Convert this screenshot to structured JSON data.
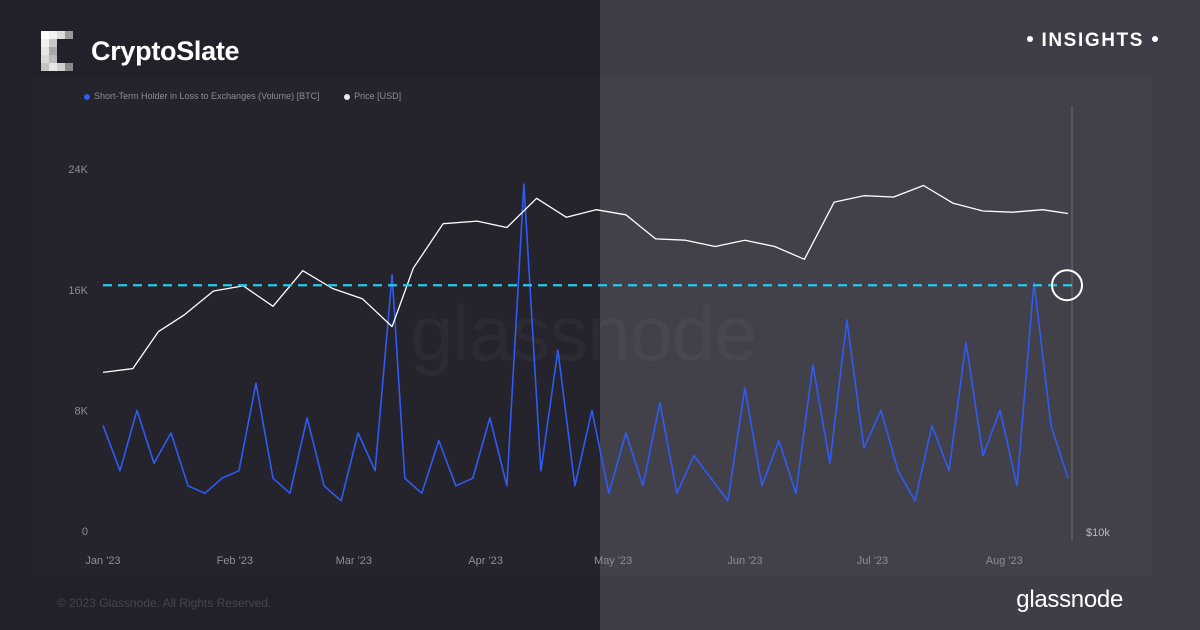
{
  "header": {
    "brand": "CryptoSlate",
    "insights_label": "INSIGHTS"
  },
  "legend": {
    "series_a": "Short-Term Holder in Loss to Exchanges (Volume) [BTC]",
    "series_b": "Price [USD]"
  },
  "watermark": "glassnode",
  "footer": {
    "copyright": "© 2023 Glassnode. All Rights Reserved.",
    "brand": "glassnode"
  },
  "colors": {
    "volume": "#2f5bf5",
    "price": "#ffffff",
    "reference_line": "#29c8e8",
    "highlight_circle": "#ffffff"
  },
  "chart_data": {
    "type": "line",
    "x_ticks": [
      "Jan '23",
      "Feb '23",
      "Mar '23",
      "Apr '23",
      "May '23",
      "Jun '23",
      "Jul '23",
      "Aug '23"
    ],
    "y_left_ticks": [
      "0",
      "8K",
      "16K",
      "24K"
    ],
    "y_left_range": [
      0,
      26000
    ],
    "y_right_tick": "$10k",
    "reference_line_value": 16300,
    "grid": false,
    "legend_position": "top-left",
    "series": [
      {
        "name": "Short-Term Holder in Loss to Exchanges (Volume) [BTC]",
        "axis": "left",
        "x": [
          "2023-01-01",
          "2023-01-05",
          "2023-01-09",
          "2023-01-13",
          "2023-01-17",
          "2023-01-21",
          "2023-01-25",
          "2023-01-29",
          "2023-02-02",
          "2023-02-06",
          "2023-02-10",
          "2023-02-14",
          "2023-02-18",
          "2023-02-22",
          "2023-02-26",
          "2023-03-02",
          "2023-03-06",
          "2023-03-10",
          "2023-03-13",
          "2023-03-17",
          "2023-03-21",
          "2023-03-25",
          "2023-03-29",
          "2023-04-02",
          "2023-04-06",
          "2023-04-10",
          "2023-04-14",
          "2023-04-18",
          "2023-04-22",
          "2023-04-26",
          "2023-04-30",
          "2023-05-04",
          "2023-05-08",
          "2023-05-12",
          "2023-05-16",
          "2023-05-20",
          "2023-05-24",
          "2023-05-28",
          "2023-06-01",
          "2023-06-05",
          "2023-06-09",
          "2023-06-13",
          "2023-06-17",
          "2023-06-21",
          "2023-06-25",
          "2023-06-29",
          "2023-07-03",
          "2023-07-07",
          "2023-07-11",
          "2023-07-15",
          "2023-07-19",
          "2023-07-23",
          "2023-07-27",
          "2023-07-31",
          "2023-08-04",
          "2023-08-08",
          "2023-08-12",
          "2023-08-16"
        ],
        "values": [
          7000,
          4000,
          8000,
          4500,
          6500,
          3000,
          2500,
          3500,
          4000,
          9800,
          3500,
          2500,
          7500,
          3000,
          2000,
          6500,
          4000,
          17000,
          3500,
          2500,
          6000,
          3000,
          3500,
          7500,
          3000,
          23000,
          4000,
          12000,
          3000,
          8000,
          2500,
          6500,
          3000,
          8500,
          2500,
          5000,
          3500,
          2000,
          9500,
          3000,
          6000,
          2500,
          11000,
          4500,
          14000,
          5500,
          8000,
          4000,
          2000,
          7000,
          4000,
          12500,
          5000,
          8000,
          3000,
          16500,
          7000,
          3500
        ]
      },
      {
        "name": "Price [USD]",
        "axis": "right",
        "x": [
          "2023-01-01",
          "2023-01-08",
          "2023-01-14",
          "2023-01-20",
          "2023-01-27",
          "2023-02-03",
          "2023-02-10",
          "2023-02-17",
          "2023-02-24",
          "2023-03-03",
          "2023-03-10",
          "2023-03-15",
          "2023-03-22",
          "2023-03-30",
          "2023-04-06",
          "2023-04-13",
          "2023-04-20",
          "2023-04-27",
          "2023-05-04",
          "2023-05-11",
          "2023-05-18",
          "2023-05-25",
          "2023-06-01",
          "2023-06-08",
          "2023-06-15",
          "2023-06-22",
          "2023-06-29",
          "2023-07-06",
          "2023-07-13",
          "2023-07-20",
          "2023-07-27",
          "2023-08-03",
          "2023-08-10",
          "2023-08-16"
        ],
        "values": [
          16600,
          16900,
          19800,
          21100,
          23000,
          23400,
          21800,
          24600,
          23200,
          22400,
          20200,
          24800,
          28300,
          28500,
          28000,
          30300,
          28800,
          29400,
          29000,
          27100,
          27000,
          26500,
          27000,
          26500,
          25500,
          30000,
          30500,
          30400,
          31300,
          29900,
          29300,
          29200,
          29400,
          29100
        ]
      }
    ]
  }
}
